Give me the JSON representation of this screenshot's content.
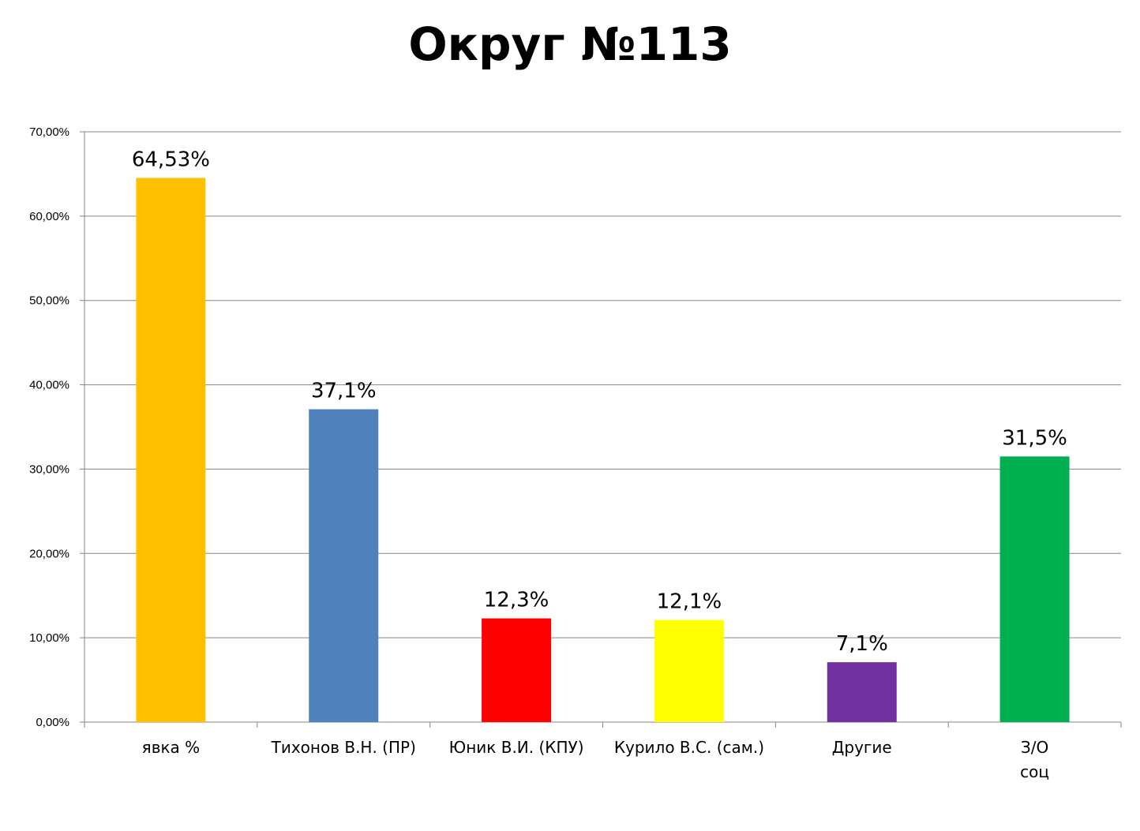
{
  "chart_data": {
    "type": "bar",
    "title": "Округ №113",
    "categories": [
      [
        "явка %"
      ],
      [
        "Тихонов В.Н. (ПР)"
      ],
      [
        "Юник В.И. (КПУ)"
      ],
      [
        "Курило В.С. (сам.)"
      ],
      [
        "Другие"
      ],
      [
        "З/О",
        "соц"
      ]
    ],
    "values": [
      64.53,
      37.1,
      12.3,
      12.1,
      7.1,
      31.5
    ],
    "data_labels": [
      "64,53%",
      "37,1%",
      "12,3%",
      "12,1%",
      "7,1%",
      "31,5%"
    ],
    "bar_colors": [
      "#FFC000",
      "#4F81BD",
      "#FF0000",
      "#FFFF00",
      "#7030A0",
      "#00B050"
    ],
    "ylim": [
      0,
      70
    ],
    "yticks": [
      0,
      10,
      20,
      30,
      40,
      50,
      60,
      70
    ],
    "ytick_labels": [
      "0,00%",
      "10,00%",
      "20,00%",
      "30,00%",
      "40,00%",
      "50,00%",
      "60,00%",
      "70,00%"
    ],
    "grid": true,
    "legend": "none",
    "xlabel": "",
    "ylabel": ""
  }
}
